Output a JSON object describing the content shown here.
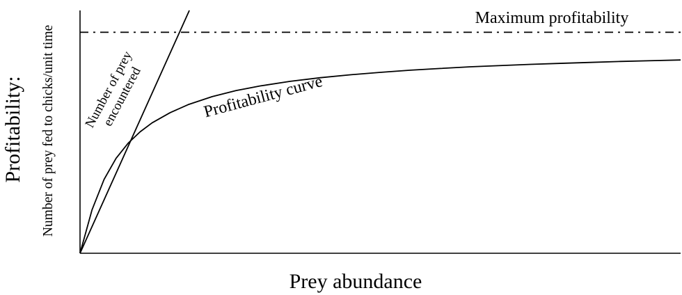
{
  "chart_data": {
    "type": "line",
    "title": "",
    "xlabel": "Prey abundance",
    "ylabel": "Profitability:",
    "ylabel_sub": "Number of prey fed to chicks/unit time",
    "xlim": [
      0,
      100
    ],
    "ylim": [
      0,
      100
    ],
    "grid": false,
    "legend": "none",
    "maximum_profitability": 91,
    "series": [
      {
        "name": "Profitability curve",
        "style": "solid",
        "x": [
          0,
          2,
          4,
          6,
          8,
          10,
          12,
          15,
          18,
          22,
          26,
          30,
          35,
          40,
          45,
          50,
          55,
          60,
          65,
          70,
          75,
          80,
          85,
          90,
          95,
          100
        ],
        "y": [
          0,
          17.9,
          30.4,
          39.1,
          45.3,
          50,
          53.7,
          57.9,
          61.2,
          64.5,
          67,
          68.9,
          70.8,
          72.3,
          73.5,
          74.5,
          75.4,
          76.1,
          76.8,
          77.3,
          77.8,
          78.2,
          78.6,
          79,
          79.3,
          79.6
        ]
      },
      {
        "name": "Number of prey encountered",
        "style": "solid",
        "x": [
          0,
          18.2
        ],
        "y": [
          0,
          100
        ]
      },
      {
        "name": "Maximum profitability",
        "style": "dash-dot",
        "x": [
          0,
          100
        ],
        "y": [
          91,
          91
        ]
      }
    ],
    "annotations": [
      {
        "text": "Maximum profitability"
      },
      {
        "text": "Profitability curve"
      },
      {
        "text_line1": "Number of prey",
        "text_line2": "encountered"
      }
    ],
    "colors": {
      "line": "#000000",
      "background": "#ffffff"
    }
  }
}
